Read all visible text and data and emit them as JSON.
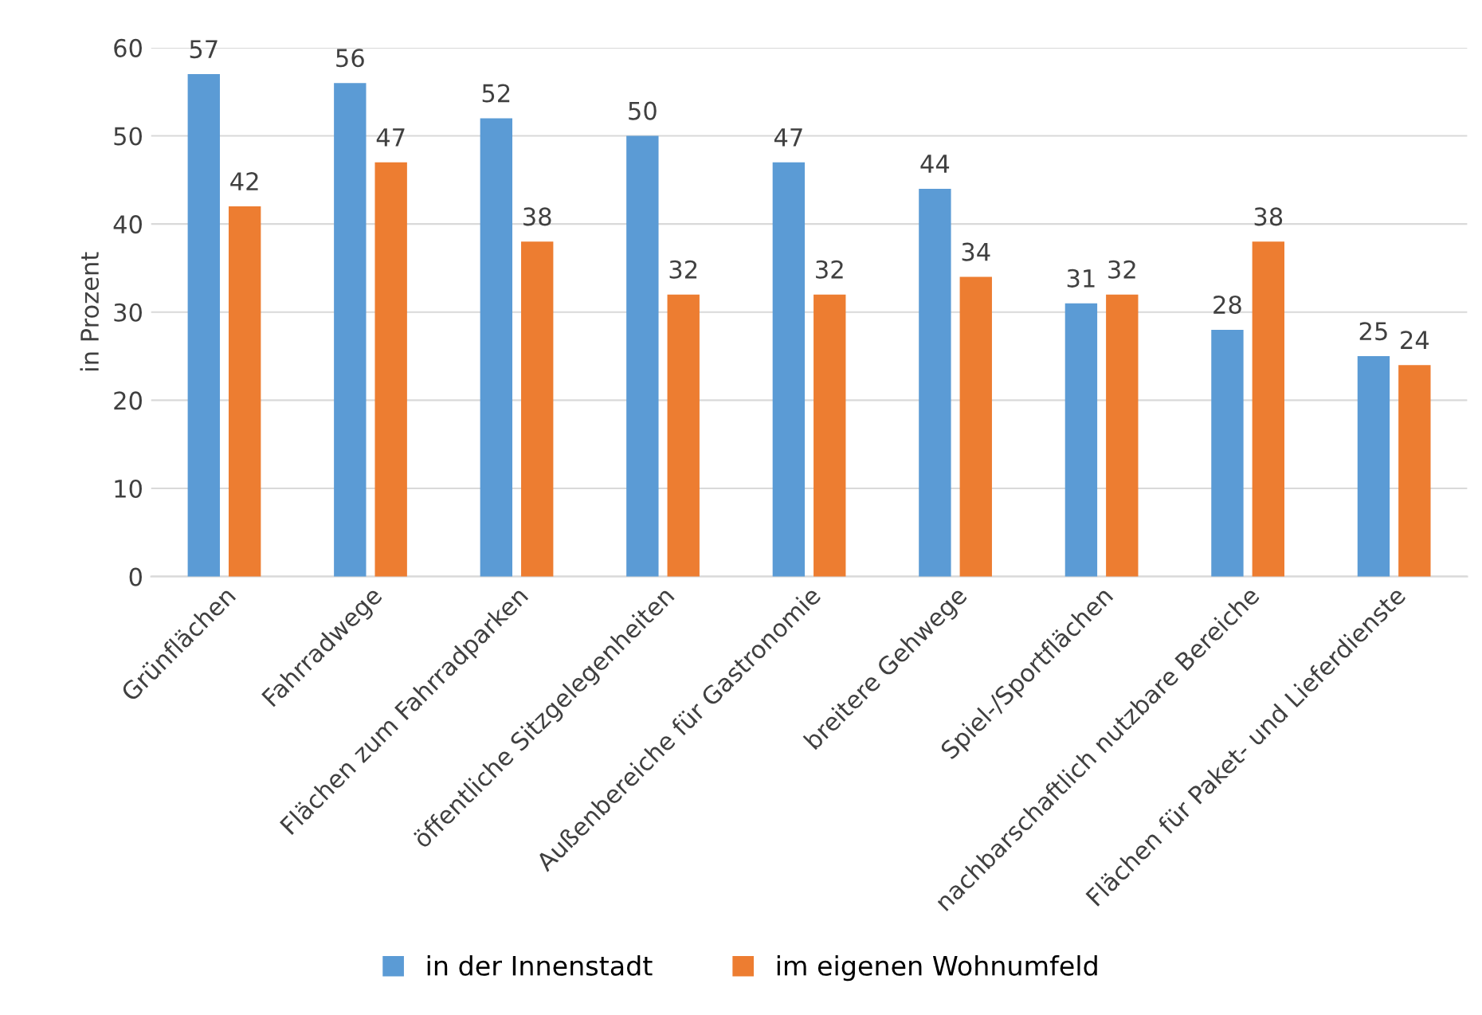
{
  "chart_data": {
    "type": "bar",
    "ylabel": "in Prozent",
    "categories": [
      "Grünflächen",
      "Fahrradwege",
      "Flächen zum Fahrradparken",
      "öffentliche Sitzgelegenheiten",
      "Außenbereiche für Gastronomie",
      "breitere Gehwege",
      "Spiel-/Sportflächen",
      "nachbarschaftlich nutzbare Bereiche",
      "Flächen für Paket- und Lieferdienste"
    ],
    "series": [
      {
        "name": "in der Innenstadt",
        "color": "#5b9bd5",
        "values": [
          57,
          56,
          52,
          50,
          47,
          44,
          31,
          28,
          25
        ]
      },
      {
        "name": "im eigenen Wohnumfeld",
        "color": "#ed7d31",
        "values": [
          42,
          47,
          38,
          32,
          32,
          34,
          32,
          38,
          24
        ]
      }
    ],
    "ylim": [
      0,
      60
    ],
    "yticks": [
      0,
      10,
      20,
      30,
      40,
      50,
      60
    ],
    "grid": "y",
    "legend": "bottom",
    "data_labels": true
  }
}
